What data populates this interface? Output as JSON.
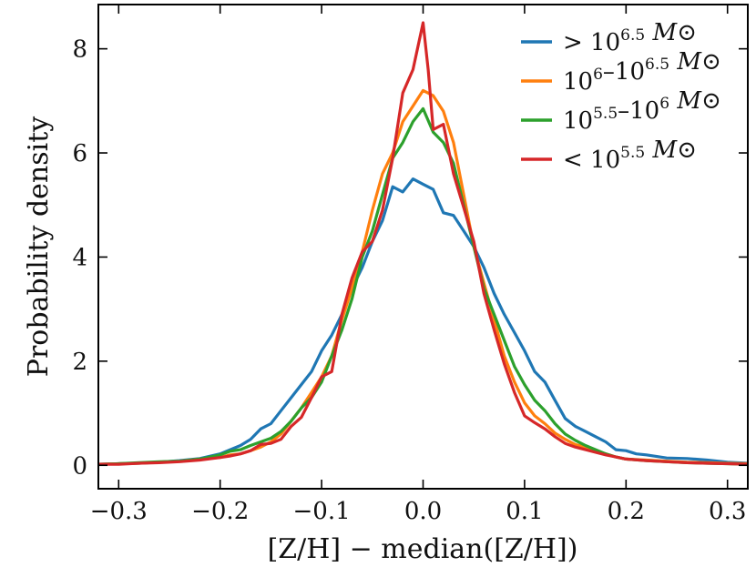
{
  "chart_data": {
    "type": "line",
    "xlabel": "[Z/H] − median([Z/H])",
    "ylabel": "Probability density",
    "xlim": [
      -0.32,
      0.32
    ],
    "ylim": [
      -0.45,
      8.85
    ],
    "xticks": [
      -0.3,
      -0.2,
      -0.1,
      0.0,
      0.1,
      0.2,
      0.3
    ],
    "xtick_labels": [
      "−0.3",
      "−0.2",
      "−0.1",
      "0.0",
      "0.1",
      "0.2",
      "0.3"
    ],
    "yticks": [
      0,
      2,
      4,
      6,
      8
    ],
    "ytick_labels": [
      "0",
      "2",
      "4",
      "6",
      "8"
    ],
    "legend_position": "top-right",
    "series": [
      {
        "name": "> 10^6.5 M⊙",
        "legend": {
          "pre": "> 10",
          "sup": "6.5",
          "mid": "",
          "sup2": "",
          "post": " M⊙"
        },
        "color": "#1f77b4",
        "x": [
          -0.32,
          -0.3,
          -0.28,
          -0.26,
          -0.24,
          -0.22,
          -0.2,
          -0.19,
          -0.18,
          -0.17,
          -0.16,
          -0.15,
          -0.14,
          -0.13,
          -0.12,
          -0.11,
          -0.1,
          -0.09,
          -0.08,
          -0.07,
          -0.06,
          -0.05,
          -0.04,
          -0.03,
          -0.02,
          -0.01,
          0.0,
          0.01,
          0.02,
          0.03,
          0.04,
          0.05,
          0.06,
          0.07,
          0.08,
          0.09,
          0.1,
          0.11,
          0.12,
          0.13,
          0.14,
          0.15,
          0.16,
          0.17,
          0.18,
          0.19,
          0.2,
          0.21,
          0.22,
          0.24,
          0.26,
          0.28,
          0.3,
          0.32
        ],
        "y": [
          0.02,
          0.03,
          0.04,
          0.06,
          0.09,
          0.13,
          0.22,
          0.3,
          0.38,
          0.5,
          0.7,
          0.8,
          1.05,
          1.3,
          1.55,
          1.8,
          2.2,
          2.5,
          2.9,
          3.4,
          3.8,
          4.3,
          4.7,
          5.35,
          5.25,
          5.5,
          5.4,
          5.3,
          4.85,
          4.8,
          4.5,
          4.2,
          3.8,
          3.3,
          2.9,
          2.55,
          2.2,
          1.8,
          1.6,
          1.25,
          0.9,
          0.75,
          0.65,
          0.55,
          0.45,
          0.3,
          0.28,
          0.22,
          0.2,
          0.14,
          0.13,
          0.1,
          0.06,
          0.04
        ]
      },
      {
        "name": "10^6–10^6.5 M⊙",
        "legend": {
          "pre": "10",
          "sup": "6",
          "mid": "–10",
          "sup2": "6.5",
          "post": " M⊙"
        },
        "color": "#ff7f0e",
        "x": [
          -0.32,
          -0.3,
          -0.28,
          -0.26,
          -0.24,
          -0.22,
          -0.2,
          -0.19,
          -0.18,
          -0.17,
          -0.16,
          -0.15,
          -0.14,
          -0.13,
          -0.12,
          -0.11,
          -0.1,
          -0.09,
          -0.08,
          -0.07,
          -0.06,
          -0.05,
          -0.04,
          -0.03,
          -0.02,
          -0.01,
          0.0,
          0.01,
          0.02,
          0.03,
          0.04,
          0.05,
          0.06,
          0.07,
          0.08,
          0.09,
          0.1,
          0.11,
          0.12,
          0.13,
          0.14,
          0.15,
          0.16,
          0.17,
          0.18,
          0.19,
          0.2,
          0.22,
          0.24,
          0.26,
          0.28,
          0.3,
          0.32
        ],
        "y": [
          0.02,
          0.03,
          0.04,
          0.06,
          0.08,
          0.12,
          0.15,
          0.2,
          0.22,
          0.28,
          0.35,
          0.45,
          0.6,
          0.85,
          1.1,
          1.4,
          1.7,
          2.1,
          2.8,
          3.4,
          4.1,
          4.9,
          5.6,
          6.0,
          6.6,
          6.9,
          7.2,
          7.1,
          6.8,
          6.2,
          5.2,
          4.2,
          3.5,
          2.8,
          2.1,
          1.6,
          1.2,
          0.95,
          0.8,
          0.62,
          0.5,
          0.4,
          0.35,
          0.28,
          0.22,
          0.16,
          0.12,
          0.1,
          0.08,
          0.06,
          0.05,
          0.04,
          0.03
        ]
      },
      {
        "name": "10^5.5–10^6 M⊙",
        "legend": {
          "pre": "10",
          "sup": "5.5",
          "mid": "–10",
          "sup2": "6",
          "post": " M⊙"
        },
        "color": "#2ca02c",
        "x": [
          -0.32,
          -0.3,
          -0.28,
          -0.26,
          -0.24,
          -0.22,
          -0.2,
          -0.19,
          -0.18,
          -0.17,
          -0.16,
          -0.15,
          -0.14,
          -0.13,
          -0.12,
          -0.11,
          -0.1,
          -0.09,
          -0.08,
          -0.07,
          -0.06,
          -0.05,
          -0.04,
          -0.03,
          -0.02,
          -0.01,
          0.0,
          0.01,
          0.02,
          0.03,
          0.04,
          0.05,
          0.06,
          0.07,
          0.08,
          0.09,
          0.1,
          0.11,
          0.12,
          0.13,
          0.14,
          0.15,
          0.16,
          0.17,
          0.18,
          0.19,
          0.2,
          0.22,
          0.24,
          0.26,
          0.28,
          0.3,
          0.32
        ],
        "y": [
          0.02,
          0.03,
          0.05,
          0.07,
          0.08,
          0.12,
          0.2,
          0.27,
          0.3,
          0.38,
          0.45,
          0.52,
          0.65,
          0.85,
          1.1,
          1.3,
          1.6,
          2.1,
          2.6,
          3.2,
          4.0,
          4.5,
          5.2,
          5.9,
          6.2,
          6.6,
          6.85,
          6.4,
          6.2,
          5.8,
          5.0,
          4.2,
          3.4,
          2.9,
          2.4,
          1.9,
          1.55,
          1.25,
          1.05,
          0.8,
          0.6,
          0.48,
          0.38,
          0.3,
          0.22,
          0.16,
          0.12,
          0.09,
          0.07,
          0.05,
          0.04,
          0.03,
          0.02
        ]
      },
      {
        "name": "< 10^5.5 M⊙",
        "legend": {
          "pre": "< 10",
          "sup": "5.5",
          "mid": "",
          "sup2": "",
          "post": " M⊙"
        },
        "color": "#d62728",
        "x": [
          -0.32,
          -0.3,
          -0.28,
          -0.26,
          -0.24,
          -0.22,
          -0.2,
          -0.19,
          -0.18,
          -0.17,
          -0.16,
          -0.15,
          -0.14,
          -0.13,
          -0.12,
          -0.11,
          -0.1,
          -0.09,
          -0.08,
          -0.07,
          -0.06,
          -0.05,
          -0.04,
          -0.03,
          -0.02,
          -0.01,
          0.0,
          0.005,
          0.01,
          0.02,
          0.03,
          0.04,
          0.05,
          0.06,
          0.07,
          0.08,
          0.09,
          0.1,
          0.11,
          0.12,
          0.13,
          0.14,
          0.15,
          0.16,
          0.17,
          0.18,
          0.19,
          0.2,
          0.22,
          0.24,
          0.26,
          0.28,
          0.3,
          0.32
        ],
        "y": [
          0.02,
          0.02,
          0.04,
          0.05,
          0.07,
          0.1,
          0.15,
          0.18,
          0.22,
          0.28,
          0.4,
          0.42,
          0.5,
          0.75,
          0.92,
          1.3,
          1.7,
          1.8,
          2.9,
          3.6,
          4.1,
          4.3,
          4.9,
          5.9,
          7.15,
          7.6,
          8.5,
          7.6,
          6.45,
          6.55,
          5.6,
          4.95,
          4.3,
          3.3,
          2.6,
          1.95,
          1.4,
          0.95,
          0.82,
          0.7,
          0.55,
          0.42,
          0.35,
          0.3,
          0.25,
          0.2,
          0.16,
          0.12,
          0.09,
          0.07,
          0.05,
          0.04,
          0.03,
          0.02
        ]
      }
    ]
  }
}
